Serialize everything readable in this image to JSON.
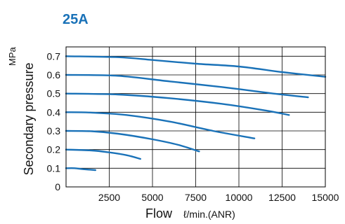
{
  "chart_data": {
    "type": "line",
    "title": "25A",
    "ylabel": "Secondary pressure",
    "yunit": "MPa",
    "xlabel": "Flow",
    "xunit": "ℓ/min.(ANR)",
    "xlim": [
      0,
      15000
    ],
    "ylim": [
      0,
      0.75
    ],
    "x_ticks": [
      2500,
      5000,
      7500,
      10000,
      12500,
      15000
    ],
    "x_tick_labels": [
      "2500",
      "5000",
      "7500",
      "10000",
      "12500",
      "15000"
    ],
    "y_ticks": [
      0,
      0.1,
      0.2,
      0.3,
      0.4,
      0.5,
      0.6,
      0.7
    ],
    "y_tick_labels": [
      "0",
      "0.1",
      "0.2",
      "0.3",
      "0.4",
      "0.5",
      "0.6",
      "0.7"
    ],
    "grid": true,
    "series": [
      {
        "points": [
          [
            0,
            0.1
          ],
          [
            500,
            0.1
          ],
          [
            1000,
            0.095
          ],
          [
            1700,
            0.09
          ]
        ]
      },
      {
        "points": [
          [
            0,
            0.2
          ],
          [
            1500,
            0.195
          ],
          [
            2500,
            0.185
          ],
          [
            3500,
            0.17
          ],
          [
            4300,
            0.15
          ]
        ]
      },
      {
        "points": [
          [
            0,
            0.3
          ],
          [
            1500,
            0.298
          ],
          [
            3000,
            0.285
          ],
          [
            5000,
            0.255
          ],
          [
            6500,
            0.225
          ],
          [
            7700,
            0.19
          ]
        ]
      },
      {
        "points": [
          [
            0,
            0.4
          ],
          [
            1500,
            0.398
          ],
          [
            3500,
            0.385
          ],
          [
            6000,
            0.35
          ],
          [
            8500,
            0.3
          ],
          [
            10900,
            0.26
          ]
        ]
      },
      {
        "points": [
          [
            0,
            0.5
          ],
          [
            3000,
            0.495
          ],
          [
            6000,
            0.475
          ],
          [
            9000,
            0.445
          ],
          [
            11500,
            0.41
          ],
          [
            12900,
            0.385
          ]
        ]
      },
      {
        "points": [
          [
            0,
            0.6
          ],
          [
            3000,
            0.595
          ],
          [
            6000,
            0.565
          ],
          [
            9000,
            0.535
          ],
          [
            12000,
            0.5
          ],
          [
            14000,
            0.48
          ]
        ]
      },
      {
        "points": [
          [
            0,
            0.7
          ],
          [
            3000,
            0.695
          ],
          [
            5000,
            0.68
          ],
          [
            7500,
            0.66
          ],
          [
            10000,
            0.645
          ],
          [
            12500,
            0.615
          ],
          [
            15000,
            0.59
          ]
        ]
      }
    ]
  },
  "colors": {
    "title": "#1a72b8",
    "curve": "#1a72b8",
    "grid": "#000000",
    "axis": "#000000"
  }
}
